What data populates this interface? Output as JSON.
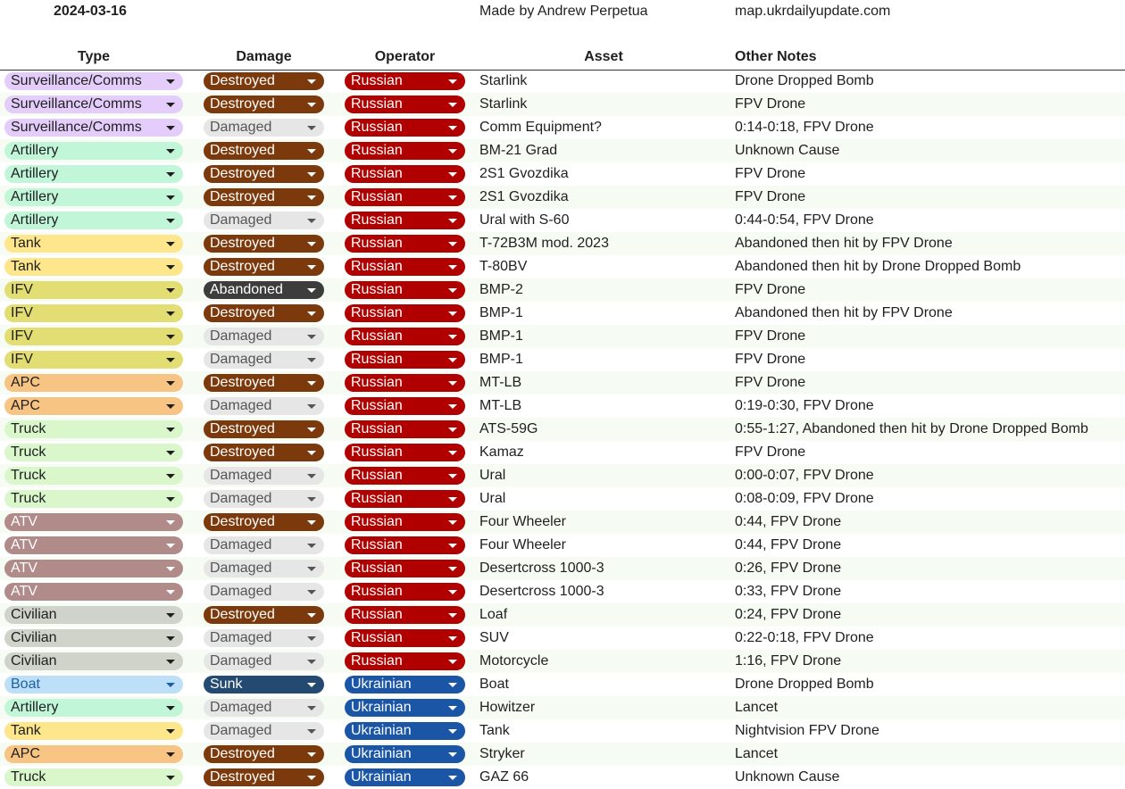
{
  "header": {
    "date": "2024-03-16",
    "credit": "Made by Andrew Perpetua",
    "site": "map.ukrdailyupdate.com"
  },
  "columns": {
    "type": "Type",
    "damage": "Damage",
    "operator": "Operator",
    "asset": "Asset",
    "notes": "Other Notes"
  },
  "colors": {
    "type": {
      "Surveillance/Comms": {
        "bg": "#e4cdfb",
        "fg": "#1f1f1f"
      },
      "Artillery": {
        "bg": "#c1f7d8",
        "fg": "#1f1f1f"
      },
      "Tank": {
        "bg": "#fde68b",
        "fg": "#1f1f1f"
      },
      "IFV": {
        "bg": "#e3de73",
        "fg": "#1f1f1f"
      },
      "APC": {
        "bg": "#f8c484",
        "fg": "#1f1f1f"
      },
      "Truck": {
        "bg": "#daf7cc",
        "fg": "#1f1f1f"
      },
      "ATV": {
        "bg": "#b18a8a",
        "fg": "#ffffff"
      },
      "Civilian": {
        "bg": "#cfd3ca",
        "fg": "#1f1f1f"
      },
      "Boat": {
        "bg": "#bddff7",
        "fg": "#1b5fa6"
      }
    },
    "damage": {
      "Destroyed": {
        "bg": "#7c3a0c",
        "fg": "#ffffff"
      },
      "Damaged": {
        "bg": "#e6e6e6",
        "fg": "#555555"
      },
      "Abandoned": {
        "bg": "#3d3d3d",
        "fg": "#ffffff"
      },
      "Sunk": {
        "bg": "#244a72",
        "fg": "#ffffff"
      }
    },
    "operator": {
      "Russian": {
        "bg": "#b10000",
        "fg": "#ffffff"
      },
      "Ukrainian": {
        "bg": "#1a55a6",
        "fg": "#ffffff"
      }
    }
  },
  "rows": [
    {
      "type": "Surveillance/Comms",
      "damage": "Destroyed",
      "operator": "Russian",
      "asset": "Starlink",
      "notes": "Drone Dropped Bomb"
    },
    {
      "type": "Surveillance/Comms",
      "damage": "Destroyed",
      "operator": "Russian",
      "asset": "Starlink",
      "notes": "FPV Drone"
    },
    {
      "type": "Surveillance/Comms",
      "damage": "Damaged",
      "operator": "Russian",
      "asset": "Comm Equipment?",
      "notes": "0:14-0:18, FPV Drone"
    },
    {
      "type": "Artillery",
      "damage": "Destroyed",
      "operator": "Russian",
      "asset": "BM-21 Grad",
      "notes": "Unknown Cause"
    },
    {
      "type": "Artillery",
      "damage": "Destroyed",
      "operator": "Russian",
      "asset": "2S1 Gvozdika",
      "notes": "FPV Drone"
    },
    {
      "type": "Artillery",
      "damage": "Destroyed",
      "operator": "Russian",
      "asset": "2S1 Gvozdika",
      "notes": "FPV Drone"
    },
    {
      "type": "Artillery",
      "damage": "Damaged",
      "operator": "Russian",
      "asset": "Ural with S-60",
      "notes": "0:44-0:54, FPV Drone"
    },
    {
      "type": "Tank",
      "damage": "Destroyed",
      "operator": "Russian",
      "asset": "T-72B3M mod. 2023",
      "notes": "Abandoned then hit by FPV Drone"
    },
    {
      "type": "Tank",
      "damage": "Destroyed",
      "operator": "Russian",
      "asset": "T-80BV",
      "notes": "Abandoned then hit by Drone Dropped Bomb"
    },
    {
      "type": "IFV",
      "damage": "Abandoned",
      "operator": "Russian",
      "asset": "BMP-2",
      "notes": "FPV Drone"
    },
    {
      "type": "IFV",
      "damage": "Destroyed",
      "operator": "Russian",
      "asset": "BMP-1",
      "notes": "Abandoned then hit by FPV Drone"
    },
    {
      "type": "IFV",
      "damage": "Damaged",
      "operator": "Russian",
      "asset": "BMP-1",
      "notes": "FPV Drone"
    },
    {
      "type": "IFV",
      "damage": "Damaged",
      "operator": "Russian",
      "asset": "BMP-1",
      "notes": "FPV Drone"
    },
    {
      "type": "APC",
      "damage": "Destroyed",
      "operator": "Russian",
      "asset": "MT-LB",
      "notes": "FPV Drone"
    },
    {
      "type": "APC",
      "damage": "Damaged",
      "operator": "Russian",
      "asset": "MT-LB",
      "notes": "0:19-0:30, FPV Drone"
    },
    {
      "type": "Truck",
      "damage": "Destroyed",
      "operator": "Russian",
      "asset": "ATS-59G",
      "notes": "0:55-1:27, Abandoned then hit by Drone Dropped Bomb"
    },
    {
      "type": "Truck",
      "damage": "Destroyed",
      "operator": "Russian",
      "asset": "Kamaz",
      "notes": "FPV Drone"
    },
    {
      "type": "Truck",
      "damage": "Damaged",
      "operator": "Russian",
      "asset": "Ural",
      "notes": "0:00-0:07, FPV Drone"
    },
    {
      "type": "Truck",
      "damage": "Damaged",
      "operator": "Russian",
      "asset": "Ural",
      "notes": "0:08-0:09, FPV Drone"
    },
    {
      "type": "ATV",
      "damage": "Destroyed",
      "operator": "Russian",
      "asset": "Four Wheeler",
      "notes": "0:44, FPV Drone"
    },
    {
      "type": "ATV",
      "damage": "Damaged",
      "operator": "Russian",
      "asset": "Four Wheeler",
      "notes": "0:44, FPV Drone"
    },
    {
      "type": "ATV",
      "damage": "Damaged",
      "operator": "Russian",
      "asset": "Desertcross 1000-3",
      "notes": "0:26, FPV Drone"
    },
    {
      "type": "ATV",
      "damage": "Damaged",
      "operator": "Russian",
      "asset": "Desertcross 1000-3",
      "notes": "0:33, FPV Drone"
    },
    {
      "type": "Civilian",
      "damage": "Destroyed",
      "operator": "Russian",
      "asset": "Loaf",
      "notes": "0:24, FPV Drone"
    },
    {
      "type": "Civilian",
      "damage": "Damaged",
      "operator": "Russian",
      "asset": "SUV",
      "notes": "0:22-0:18, FPV Drone"
    },
    {
      "type": "Civilian",
      "damage": "Damaged",
      "operator": "Russian",
      "asset": "Motorcycle",
      "notes": "1:16, FPV Drone"
    },
    {
      "type": "Boat",
      "damage": "Sunk",
      "operator": "Ukrainian",
      "asset": "Boat",
      "notes": "Drone Dropped Bomb"
    },
    {
      "type": "Artillery",
      "damage": "Damaged",
      "operator": "Ukrainian",
      "asset": "Howitzer",
      "notes": "Lancet"
    },
    {
      "type": "Tank",
      "damage": "Damaged",
      "operator": "Ukrainian",
      "asset": "Tank",
      "notes": "Nightvision FPV Drone"
    },
    {
      "type": "APC",
      "damage": "Destroyed",
      "operator": "Ukrainian",
      "asset": "Stryker",
      "notes": "Lancet"
    },
    {
      "type": "Truck",
      "damage": "Destroyed",
      "operator": "Ukrainian",
      "asset": "GAZ 66",
      "notes": "Unknown Cause"
    }
  ]
}
